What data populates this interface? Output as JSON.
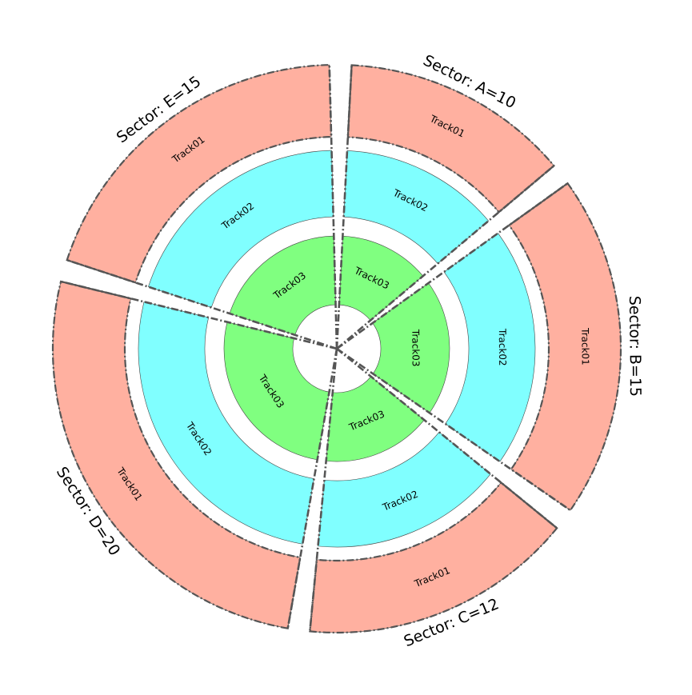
{
  "sectors": [
    {
      "id": "A",
      "label": "Sector: A=10",
      "size": 10
    },
    {
      "id": "B",
      "label": "Sector: B=15",
      "size": 15
    },
    {
      "id": "C",
      "label": "Sector: C=12",
      "size": 12
    },
    {
      "id": "D",
      "label": "Sector: D=20",
      "size": 20
    },
    {
      "id": "E",
      "label": "Sector: E=15",
      "size": 15
    }
  ],
  "tracks": [
    {
      "name": "Track01",
      "color": "#FFB0A0"
    },
    {
      "name": "Track02",
      "color": "#80FFFF"
    },
    {
      "name": "Track03",
      "color": "#80FF80"
    }
  ],
  "colors": {
    "outline": "#555555",
    "background": "#FFFFFF"
  }
}
